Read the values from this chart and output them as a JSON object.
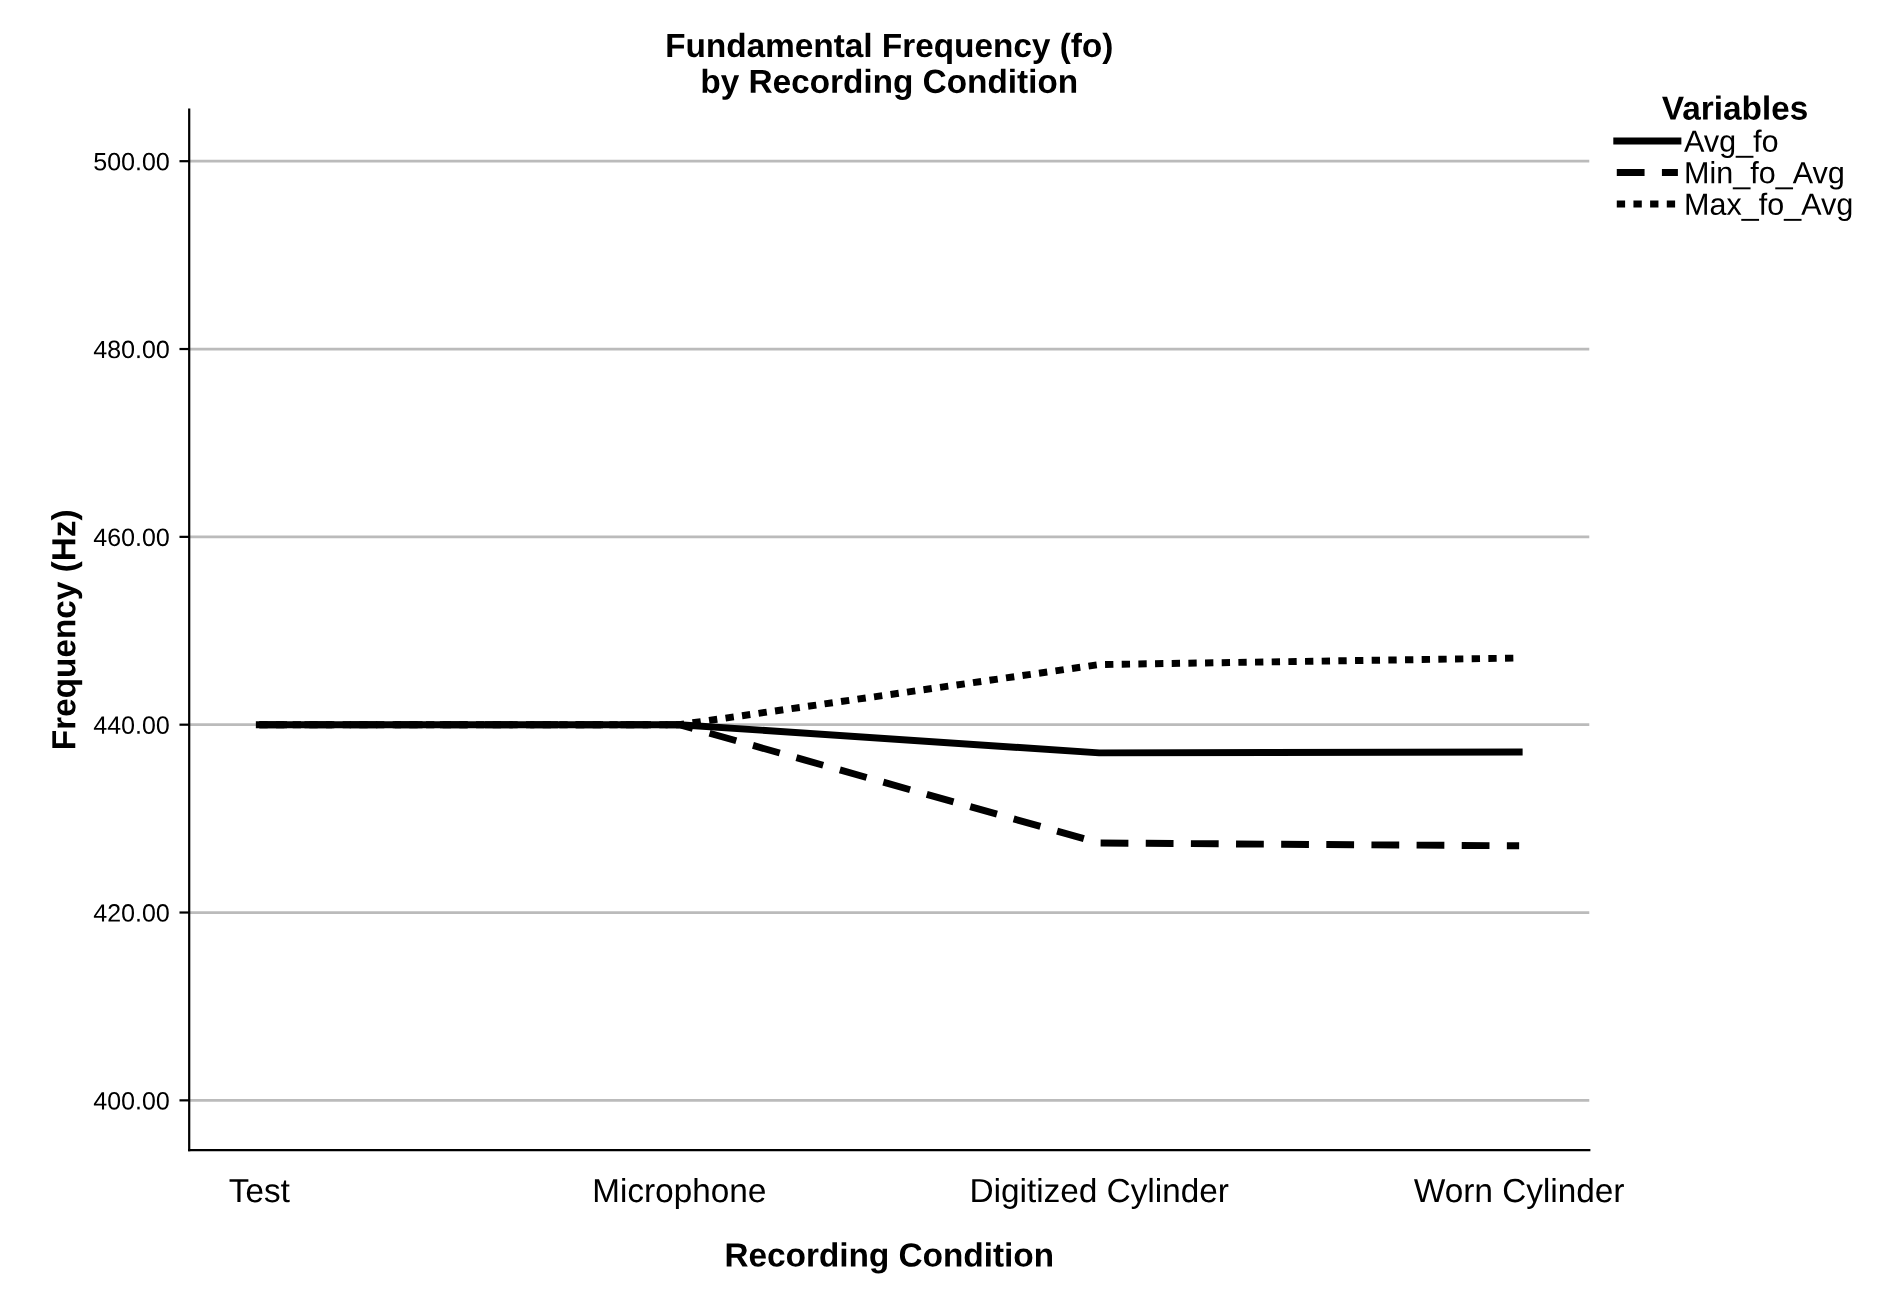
{
  "chart_data": {
    "type": "line",
    "title": "Fundamental Frequency (fo)\nby Recording Condition",
    "xlabel": "Recording Condition",
    "ylabel": "Frequency (Hz)",
    "legend_title": "Variables",
    "categories": [
      "Test",
      "Microphone",
      "Digitized Cylinder",
      "Worn Cylinder"
    ],
    "series": [
      {
        "name": "Avg_fo",
        "color": "#000000",
        "line_style": "solid",
        "values": [
          440.0,
          440.0,
          437.0,
          437.1
        ]
      },
      {
        "name": "Min_fo_Avg",
        "color": "#000000",
        "line_style": "dashed",
        "values": [
          440.0,
          440.0,
          427.4,
          427.1
        ]
      },
      {
        "name": "Max_fo_Avg",
        "color": "#000000",
        "line_style": "dotted",
        "values": [
          440.0,
          440.0,
          446.4,
          447.1
        ]
      }
    ],
    "ylim": [
      394.7,
      505.5
    ],
    "yticks": [
      {
        "value": 400,
        "label": "400.00"
      },
      {
        "value": 420,
        "label": "420.00"
      },
      {
        "value": 440,
        "label": "440.00"
      },
      {
        "value": 460,
        "label": "460.00"
      },
      {
        "value": 480,
        "label": "480.00"
      },
      {
        "value": 500,
        "label": "500.00"
      }
    ],
    "grid": "y",
    "legend": "top right",
    "marker": "none"
  }
}
